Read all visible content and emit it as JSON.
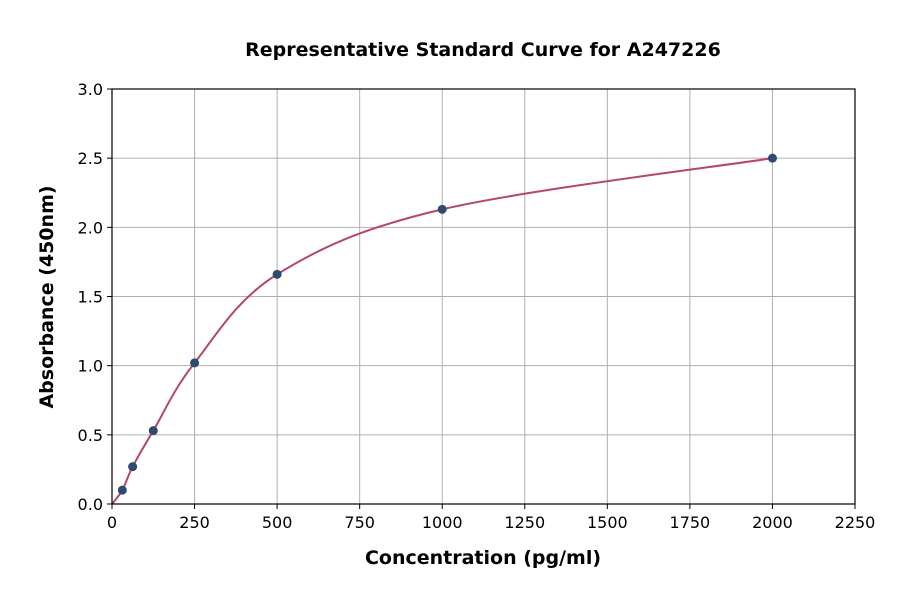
{
  "chart_data": {
    "type": "scatter",
    "title": "Representative Standard Curve for A247226",
    "xlabel": "Concentration (pg/ml)",
    "ylabel": "Absorbance (450nm)",
    "xlim": [
      0,
      2250
    ],
    "ylim": [
      0,
      3.0
    ],
    "grid": true,
    "xticks": [
      "0",
      "250",
      "500",
      "750",
      "1000",
      "1250",
      "1500",
      "1750",
      "2000",
      "2250"
    ],
    "yticks": [
      "0.0",
      "0.5",
      "1.0",
      "1.5",
      "2.0",
      "2.5",
      "3.0"
    ],
    "series": [
      {
        "x": [
          31.25,
          62.5,
          125,
          250,
          500,
          1000,
          2000
        ],
        "y": [
          0.1,
          0.27,
          0.53,
          1.02,
          1.66,
          2.13,
          2.5
        ]
      }
    ],
    "point_color": "#2e4a6e",
    "curve_color": "#b5476b"
  }
}
